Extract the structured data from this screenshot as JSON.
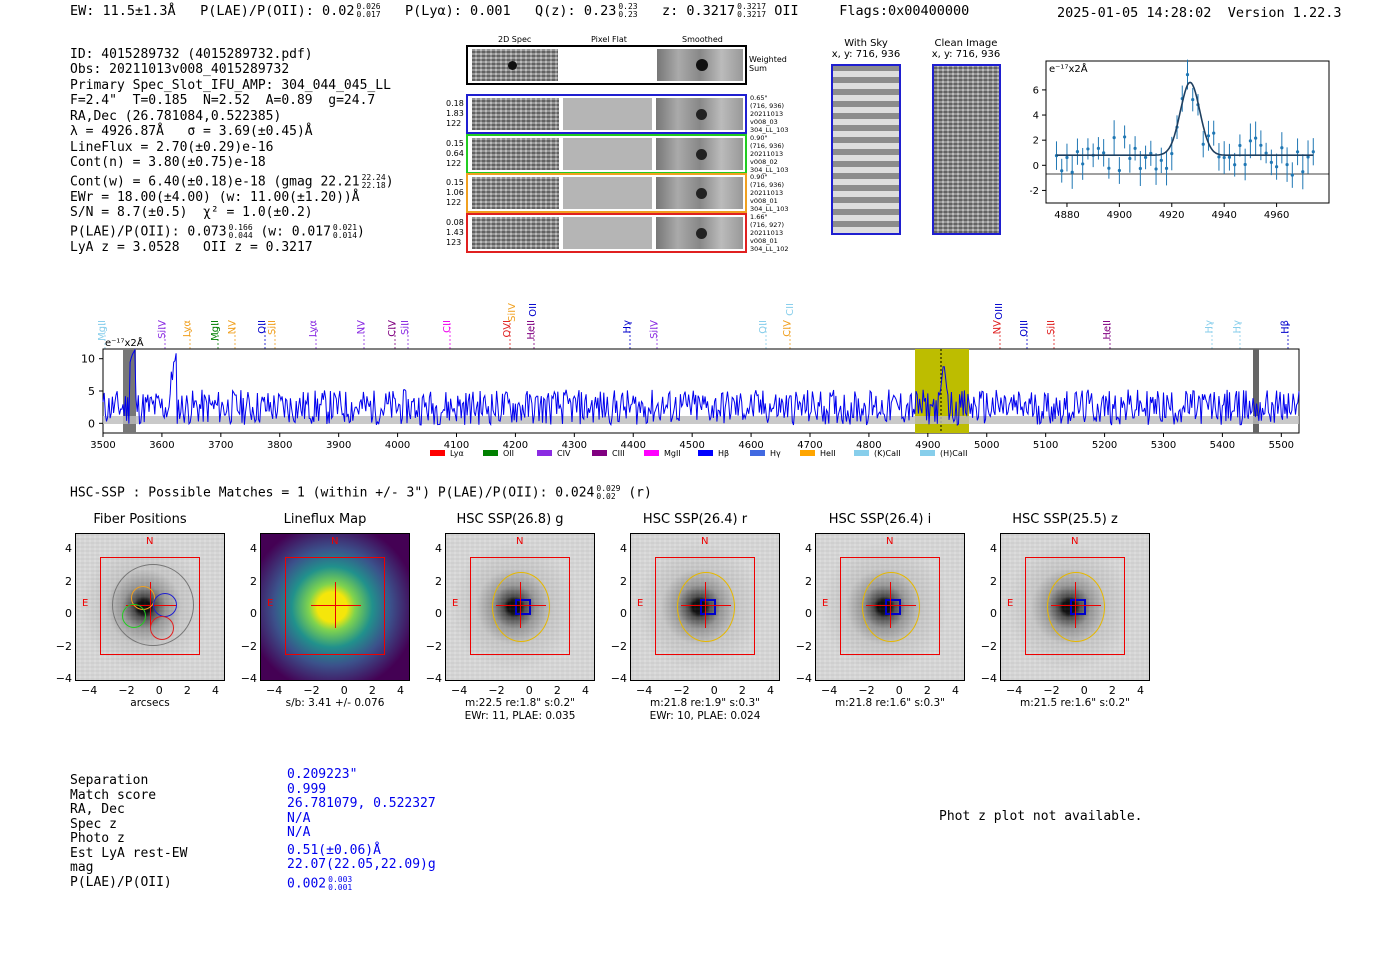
{
  "header": {
    "ew": "EW: 11.5±1.3Å",
    "plae_label": "P(LAE)/P(OII): 0.02",
    "plae_up": "0.026",
    "plae_lo": "0.017",
    "plya": "P(Lyα): 0.001",
    "qz": "Q(z): 0.23",
    "qz_up": "0.23",
    "qz_lo": "0.23",
    "z": "z: 0.3217",
    "z_up": "0.3217",
    "z_lo": "0.3217",
    "z_line": "OII",
    "flags": "Flags:0x00400000",
    "date": "2025-01-05 14:28:02",
    "version": "Version 1.22.3"
  },
  "info": {
    "id": "ID: 4015289732 (4015289732.pdf)",
    "obs": "Obs: 20211013v008_4015289732",
    "primary": "Primary Spec_Slot_IFU_AMP: 304_044_045_LL",
    "params": "F=2.4\"  T=0.185  N=2.52  A=0.89  g=24.7",
    "radec": "RA,Dec (26.781084,0.522385)",
    "lambda": "λ = 4926.87Å   σ = 3.69(±0.45)Å",
    "lineflux": "LineFlux = 2.70(±0.29)e-16",
    "contn": "Cont(n) = 3.80(±0.75)e-18",
    "contw": "Cont(w) = 6.40(±0.18)e-18 (gmag 22.21",
    "contw_up": "22.24",
    "contw_lo": "22.18",
    "contw_end": ")",
    "ewr": "EWr = 18.00(±4.00) (w: 11.00(±1.20))Å",
    "sn": "S/N = 8.7(±0.5)  χ² = 1.0(±0.2)",
    "plae": "P(LAE)/P(OII): 0.073",
    "plae_up": "0.166",
    "plae_lo": "0.044",
    "plae_w": "(w: 0.017",
    "plae_w_up": "0.021",
    "plae_w_lo": "0.014",
    "plae_w_end": ")",
    "lyaz": "LyA z = 3.0528   OII z = 0.3217"
  },
  "spec2d": {
    "col_2d": "2D Spec",
    "col_flat": "Pixel Flat",
    "col_smooth": "Smoothed",
    "weighted": "Weighted Sum",
    "rows": [
      {
        "left": "0.18\n1.83\n122",
        "right": "0.65\"\n(716, 936)\n20211013\nv008_03\n304_LL_103",
        "color": "#1f1fd0"
      },
      {
        "left": "0.15\n0.64\n122",
        "right": "0.90\"\n(716, 936)\n20211013\nv008_02\n304_LL_103",
        "color": "#22cc22"
      },
      {
        "left": "0.15\n1.06\n122",
        "right": "0.90\"\n(716, 936)\n20211013\nv008_01\n304_LL_103",
        "color": "#f0a020"
      },
      {
        "left": "0.08\n1.43\n123",
        "right": "1.66\"\n(716, 927)\n20211013\nv008_01\n304_LL_102",
        "color": "#e02020"
      }
    ]
  },
  "sky": {
    "title": "With Sky",
    "coords": "x, y: 716, 936"
  },
  "clean": {
    "title": "Clean Image",
    "coords": "x, y: 716, 936"
  },
  "zoom_plot": {
    "unit": "e⁻¹⁷x2Å",
    "xticks": [
      "4880",
      "4900",
      "4920",
      "4940",
      "4960"
    ],
    "yticks": [
      "6",
      "4",
      "2",
      "0",
      "-2"
    ]
  },
  "spectrum": {
    "unit": "e⁻¹⁷x2Å",
    "xticks": [
      "3500",
      "3600",
      "3700",
      "3800",
      "3900",
      "4000",
      "4100",
      "4200",
      "4300",
      "4400",
      "4500",
      "4600",
      "4700",
      "4800",
      "4900",
      "5000",
      "5100",
      "5200",
      "5300",
      "5400",
      "5500"
    ],
    "yticks": [
      "10",
      "5",
      "0"
    ],
    "line_labels": [
      {
        "t": "MgII",
        "c": "#87ceeb"
      },
      {
        "t": "SiIV",
        "c": "#8a2be2"
      },
      {
        "t": "Lyα",
        "c": "#f0a020"
      },
      {
        "t": "MgII",
        "c": "#008000"
      },
      {
        "t": "NV",
        "c": "#f0a020"
      },
      {
        "t": "OII",
        "c": "#0000cc"
      },
      {
        "t": "SiII",
        "c": "#f0a020"
      },
      {
        "t": "Lyα",
        "c": "#8a2be2"
      },
      {
        "t": "NV",
        "c": "#8a2be2"
      },
      {
        "t": "CIV",
        "c": "#800080"
      },
      {
        "t": "SiII",
        "c": "#8a2be2"
      },
      {
        "t": "CII",
        "c": "#ee00ee"
      },
      {
        "t": "OVI",
        "c": "#e02020"
      },
      {
        "t": "HeII",
        "c": "#800080"
      },
      {
        "t": "Hγ",
        "c": "#0000cc"
      },
      {
        "t": "SiIV",
        "c": "#8a2be2"
      },
      {
        "t": "OII",
        "c": "#87ceeb"
      },
      {
        "t": "CIV",
        "c": "#f0a020"
      },
      {
        "t": "NV",
        "c": "#e02020"
      },
      {
        "t": "OIII",
        "c": "#0000cc"
      },
      {
        "t": "SiII",
        "c": "#e02020"
      },
      {
        "t": "HeII",
        "c": "#800080"
      },
      {
        "t": "Hγ",
        "c": "#87ceeb"
      },
      {
        "t": "Hγ",
        "c": "#87ceeb"
      },
      {
        "t": "Hβ",
        "c": "#0000cc"
      }
    ],
    "top_labels": [
      {
        "t": "SiIV",
        "c": "#f0a020"
      },
      {
        "t": "OII",
        "c": "#0000cc"
      },
      {
        "t": "CII",
        "c": "#87ceeb"
      },
      {
        "t": "OIII",
        "c": "#0000cc"
      }
    ],
    "legend": [
      {
        "t": "Lyα",
        "c": "#ff0000"
      },
      {
        "t": "OII",
        "c": "#008000"
      },
      {
        "t": "CIV",
        "c": "#8a2be2"
      },
      {
        "t": "CIII",
        "c": "#800080"
      },
      {
        "t": "MgII",
        "c": "#ff00ff"
      },
      {
        "t": "Hβ",
        "c": "#0000ff"
      },
      {
        "t": "Hγ",
        "c": "#4169e1"
      },
      {
        "t": "HeII",
        "c": "#ffa500"
      },
      {
        "t": "(K)CaII",
        "c": "#87ceeb"
      },
      {
        "t": "(H)CaII",
        "c": "#87ceeb"
      }
    ]
  },
  "hsc": {
    "heading": "HSC-SSP : Possible Matches = 1 (within +/- 3\")  P(LAE)/P(OII): 0.024",
    "heading_up": "0.029",
    "heading_lo": "0.02",
    "heading_end": "(r)",
    "panels": [
      {
        "title": "Fiber Positions",
        "cap1": "arcsecs",
        "cap2": ""
      },
      {
        "title": "Lineflux Map",
        "cap1": "s/b: 3.41 +/- 0.076",
        "cap2": ""
      },
      {
        "title": "HSC SSP(26.8) g",
        "cap1": "m:22.5  re:1.8\"  s:0.2\"",
        "cap2": "EWr: 11, PLAE: 0.035"
      },
      {
        "title": "HSC SSP(26.4) r",
        "cap1": "m:21.8  re:1.9\"  s:0.3\"",
        "cap2": "EWr: 10, PLAE: 0.024"
      },
      {
        "title": "HSC SSP(26.4) i",
        "cap1": "m:21.8  re:1.6\"  s:0.3\"",
        "cap2": ""
      },
      {
        "title": "HSC SSP(25.5) z",
        "cap1": "m:21.5  re:1.6\"  s:0.2\"",
        "cap2": ""
      }
    ],
    "yticks": [
      "4",
      "2",
      "0",
      "−2",
      "−4"
    ],
    "xticks": [
      "−4",
      "−2",
      "0",
      "2",
      "4"
    ],
    "north": "N",
    "east": "E"
  },
  "match": {
    "labels": [
      "Separation",
      "Match score",
      "RA, Dec",
      "Spec z",
      "Photo z",
      "Est LyA rest-EW",
      "mag",
      "P(LAE)/P(OII)"
    ],
    "values": [
      "0.209223\"",
      "0.999",
      "26.781079, 0.522327",
      "N/A",
      "N/A",
      "0.51(±0.06)Å",
      "22.07(22.05,22.09)g",
      "0.002"
    ],
    "plae_up": "0.003",
    "plae_lo": "0.001",
    "photz_msg": "Phot z plot not available."
  }
}
